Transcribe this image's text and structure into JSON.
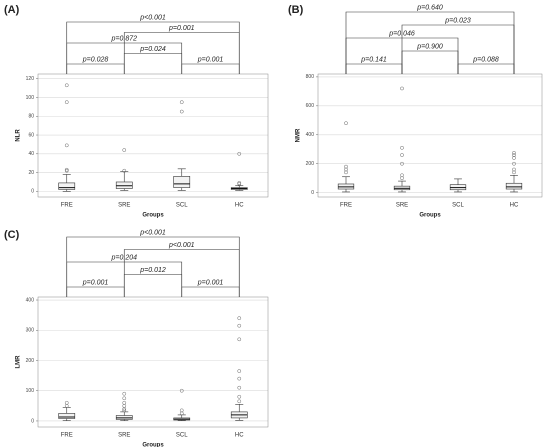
{
  "chart_data": [
    {
      "type": "box",
      "label": "(A)",
      "ylabel": "NLR",
      "xlabel": "Groups",
      "categories": [
        "FRE",
        "SRE",
        "SCL",
        "HC"
      ],
      "ylim": [
        -6,
        125
      ],
      "yticks": [
        0,
        20,
        40,
        60,
        80,
        100,
        120
      ],
      "grid": true,
      "boxes": [
        {
          "whislo": 0,
          "q1": 2,
          "med": 4,
          "q3": 9,
          "whishi": 18,
          "fliers": [
            22,
            23,
            49,
            95,
            113
          ]
        },
        {
          "whislo": 1,
          "q1": 3,
          "med": 6,
          "q3": 10,
          "whishi": 21,
          "fliers": [
            22,
            44
          ]
        },
        {
          "whislo": 1,
          "q1": 4,
          "med": 8,
          "q3": 16,
          "whishi": 24,
          "fliers": [
            85,
            95
          ]
        },
        {
          "whislo": 1,
          "q1": 2,
          "med": 3,
          "q3": 4,
          "whishi": 6,
          "fliers": [
            8,
            9,
            40
          ]
        }
      ],
      "comparisons": [
        {
          "groups": [
            "FRE",
            "SRE"
          ],
          "label": "p=0.028"
        },
        {
          "groups": [
            "SRE",
            "SCL"
          ],
          "label": "p=0.024"
        },
        {
          "groups": [
            "SCL",
            "HC"
          ],
          "label": "p=0.001"
        },
        {
          "groups": [
            "FRE",
            "SCL"
          ],
          "label": "p=0.872"
        },
        {
          "groups": [
            "SRE",
            "HC"
          ],
          "label": "p=0.001"
        },
        {
          "groups": [
            "FRE",
            "HC"
          ],
          "label": "p<0.001"
        }
      ]
    },
    {
      "type": "box",
      "label": "(B)",
      "ylabel": "NMR",
      "xlabel": "Groups",
      "categories": [
        "FRE",
        "SRE",
        "SCL",
        "HC"
      ],
      "ylim": [
        -30,
        820
      ],
      "yticks": [
        0,
        200,
        400,
        600,
        800
      ],
      "grid": true,
      "boxes": [
        {
          "whislo": 5,
          "q1": 25,
          "med": 40,
          "q3": 60,
          "whishi": 110,
          "fliers": [
            140,
            160,
            180,
            480
          ]
        },
        {
          "whislo": 5,
          "q1": 20,
          "med": 30,
          "q3": 45,
          "whishi": 80,
          "fliers": [
            100,
            120,
            200,
            260,
            310,
            720
          ]
        },
        {
          "whislo": 5,
          "q1": 20,
          "med": 35,
          "q3": 55,
          "whishi": 95,
          "fliers": []
        },
        {
          "whislo": 5,
          "q1": 25,
          "med": 40,
          "q3": 65,
          "whishi": 120,
          "fliers": [
            140,
            160,
            200,
            240,
            260,
            275
          ]
        }
      ],
      "comparisons": [
        {
          "groups": [
            "FRE",
            "SRE"
          ],
          "label": "p=0.141"
        },
        {
          "groups": [
            "SRE",
            "SCL"
          ],
          "label": "p=0.900"
        },
        {
          "groups": [
            "SCL",
            "HC"
          ],
          "label": "p=0.088"
        },
        {
          "groups": [
            "FRE",
            "SCL"
          ],
          "label": "p=0.046"
        },
        {
          "groups": [
            "SRE",
            "HC"
          ],
          "label": "p=0.023"
        },
        {
          "groups": [
            "FRE",
            "HC"
          ],
          "label": "p=0.640"
        }
      ]
    },
    {
      "type": "box",
      "label": "(C)",
      "ylabel": "LMR",
      "xlabel": "Groups",
      "categories": [
        "FRE",
        "SRE",
        "SCL",
        "HC"
      ],
      "ylim": [
        -20,
        410
      ],
      "yticks": [
        0,
        100,
        200,
        300,
        400
      ],
      "grid": true,
      "boxes": [
        {
          "whislo": 1,
          "q1": 8,
          "med": 13,
          "q3": 25,
          "whishi": 45,
          "fliers": [
            50,
            60
          ]
        },
        {
          "whislo": 1,
          "q1": 5,
          "med": 10,
          "q3": 18,
          "whishi": 30,
          "fliers": [
            35,
            40,
            50,
            60,
            75,
            90
          ]
        },
        {
          "whislo": 1,
          "q1": 3,
          "med": 6,
          "q3": 10,
          "whishi": 20,
          "fliers": [
            25,
            35,
            100
          ]
        },
        {
          "whislo": 2,
          "q1": 10,
          "med": 20,
          "q3": 30,
          "whishi": 55,
          "fliers": [
            65,
            80,
            110,
            140,
            165,
            270,
            315,
            340
          ]
        }
      ],
      "comparisons": [
        {
          "groups": [
            "FRE",
            "SRE"
          ],
          "label": "p=0.001"
        },
        {
          "groups": [
            "SRE",
            "SCL"
          ],
          "label": "p=0.012"
        },
        {
          "groups": [
            "SCL",
            "HC"
          ],
          "label": "p=0.001"
        },
        {
          "groups": [
            "FRE",
            "SCL"
          ],
          "label": "p=0.204"
        },
        {
          "groups": [
            "SRE",
            "HC"
          ],
          "label": "p<0.001"
        },
        {
          "groups": [
            "FRE",
            "HC"
          ],
          "label": "p<0.001"
        }
      ]
    }
  ]
}
